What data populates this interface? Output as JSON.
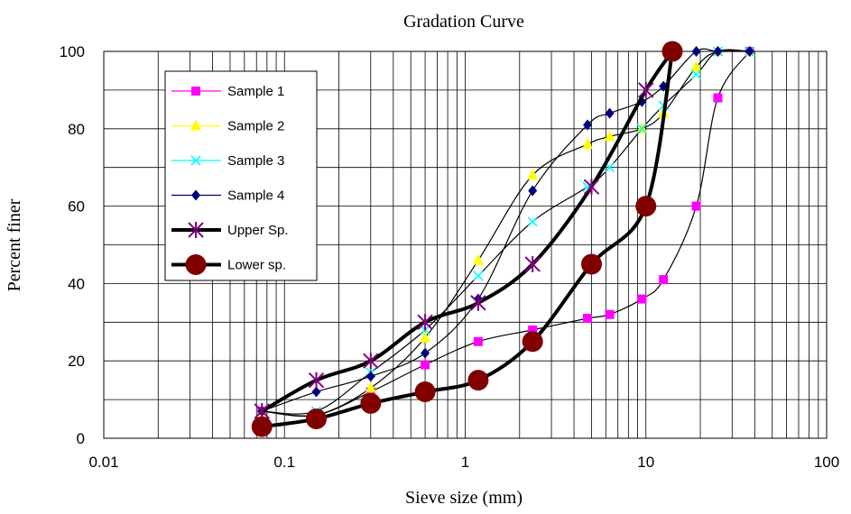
{
  "chart_data": {
    "type": "line",
    "title": "Gradation Curve",
    "xlabel": "Sieve size (mm)",
    "ylabel": "Percent finer",
    "xscale": "log",
    "xlim": [
      0.01,
      100
    ],
    "ylim": [
      0,
      100
    ],
    "x_ticks": [
      "0.01",
      "0.1",
      "1",
      "10",
      "100"
    ],
    "y_ticks": [
      "0",
      "20",
      "40",
      "60",
      "80",
      "100"
    ],
    "grid": true,
    "legend_position": "top-left",
    "series": [
      {
        "name": "Sample 1",
        "color": "#ff00ff",
        "marker": "square",
        "x": [
          0.075,
          0.15,
          0.3,
          0.6,
          1.18,
          2.36,
          4.75,
          6.3,
          9.5,
          12.5,
          19,
          25,
          37.5
        ],
        "y": [
          7,
          6,
          12,
          19,
          25,
          28,
          31,
          32,
          36,
          41,
          60,
          88,
          100
        ]
      },
      {
        "name": "Sample 2",
        "color": "#ffff00",
        "marker": "triangle",
        "x": [
          0.075,
          0.15,
          0.3,
          0.6,
          1.18,
          2.36,
          4.75,
          6.3,
          9.5,
          12.5,
          19,
          25,
          37.5
        ],
        "y": [
          7,
          6,
          13,
          26,
          46,
          68,
          76,
          78,
          80,
          84,
          96,
          100,
          100
        ]
      },
      {
        "name": "Sample 3",
        "color": "#00ffff",
        "marker": "x",
        "x": [
          0.075,
          0.15,
          0.3,
          0.6,
          1.18,
          2.36,
          4.75,
          6.3,
          9.5,
          12.5,
          19,
          25,
          37.5
        ],
        "y": [
          7,
          7,
          17,
          28,
          42,
          56,
          65,
          70,
          80,
          86,
          94,
          100,
          100
        ]
      },
      {
        "name": "Sample 4",
        "color": "#000080",
        "marker": "diamond",
        "x": [
          0.075,
          0.15,
          0.3,
          0.6,
          1.18,
          2.36,
          4.75,
          6.3,
          9.5,
          12.5,
          19,
          25,
          37.5
        ],
        "y": [
          7,
          12,
          16,
          22,
          36,
          64,
          81,
          84,
          87,
          91,
          100,
          100,
          100
        ]
      },
      {
        "name": "Upper Sp.",
        "color": "#800080",
        "marker": "star",
        "x": [
          0.075,
          0.15,
          0.3,
          0.6,
          1.18,
          2.36,
          5,
          10,
          14
        ],
        "y": [
          7,
          15,
          20,
          30,
          35,
          45,
          65,
          90,
          100
        ]
      },
      {
        "name": "Lower sp.",
        "color": "#800000",
        "marker": "circle",
        "x": [
          0.075,
          0.15,
          0.3,
          0.6,
          1.18,
          2.36,
          5,
          10,
          14
        ],
        "y": [
          3,
          5,
          9,
          12,
          15,
          25,
          45,
          60,
          100
        ]
      }
    ]
  }
}
